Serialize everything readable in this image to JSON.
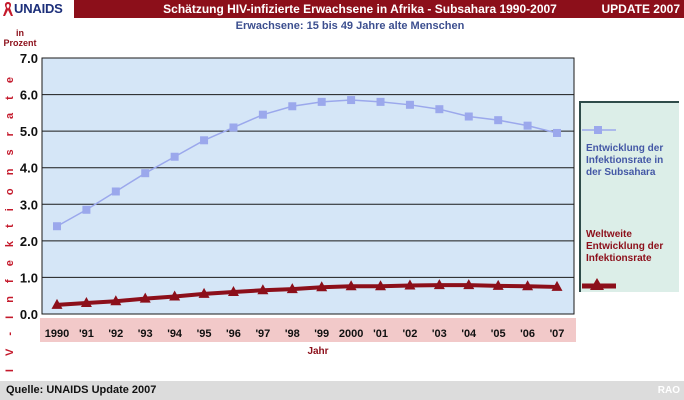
{
  "header": {
    "logo_text": "UNAIDS",
    "title": "Schätzung HIV-infizierte Erwachsene in Afrika - Subsahara 1990-2007",
    "badge": "UPDATE 2007"
  },
  "unit_label": {
    "line1": "in",
    "line2": "Prozent"
  },
  "footer": {
    "source": "Quelle: UNAIDS Update 2007",
    "credit": "RAO"
  },
  "colors": {
    "header_bg": "#8c0f1a",
    "plot_bg": "#d5e6f7",
    "series_blue": "#9ba8ec",
    "series_red": "#8c0f1a",
    "xaxis_band": "#f2c9c9",
    "legend_bg": "#dceee8"
  },
  "chart_data": {
    "type": "line",
    "title": "Schätzung HIV-infizierte Erwachsene in Afrika - Subsahara 1990-2007",
    "subtitle": "Erwachsene: 15 bis 49 Jahre alte Menschen",
    "xlabel": "Jahr",
    "ylabel": "H I V -   I n f e k t i o n s r a t e",
    "categories": [
      "1990",
      "'91",
      "'92",
      "'93",
      "'94",
      "'95",
      "'96",
      "'97",
      "'98",
      "'99",
      "2000",
      "'01",
      "'02",
      "'03",
      "'04",
      "'05",
      "'06",
      "'07"
    ],
    "yticks": [
      "0.0",
      "1.0",
      "2.0",
      "3.0",
      "4.0",
      "5.0",
      "6.0",
      "7.0"
    ],
    "ylim": [
      0,
      7
    ],
    "grid": true,
    "legend_position": "right",
    "series": [
      {
        "name": "Entwicklung der Infektionsrate in der Subsahara",
        "marker": "square",
        "color": "#9ba8ec",
        "values": [
          2.4,
          2.85,
          3.35,
          3.85,
          4.3,
          4.75,
          5.1,
          5.45,
          5.68,
          5.8,
          5.85,
          5.8,
          5.72,
          5.6,
          5.4,
          5.3,
          5.15,
          4.95
        ]
      },
      {
        "name": "Weltweite Entwicklung der Infektionsrate",
        "marker": "triangle",
        "color": "#8c0f1a",
        "values": [
          0.25,
          0.3,
          0.35,
          0.42,
          0.48,
          0.55,
          0.6,
          0.65,
          0.68,
          0.73,
          0.76,
          0.76,
          0.78,
          0.79,
          0.79,
          0.77,
          0.76,
          0.74
        ]
      }
    ]
  }
}
